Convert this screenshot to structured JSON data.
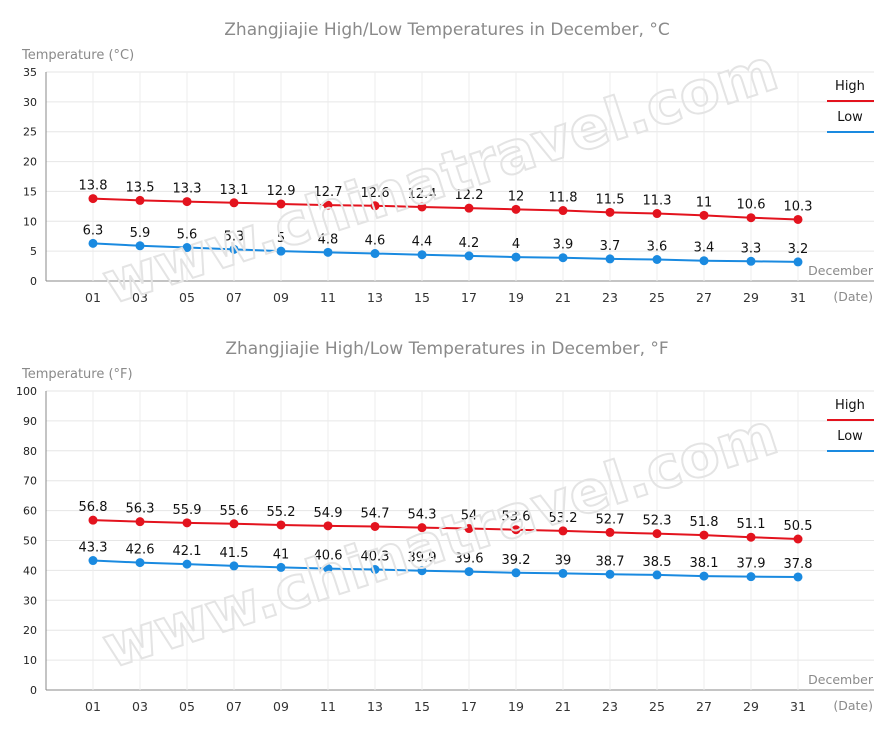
{
  "chart_data": [
    {
      "type": "line",
      "title": "Zhangjiajie High/Low Temperatures in December, °C",
      "ylabel": "Temperature (°C)",
      "xlabel": "December",
      "xlabel_sub": "(Date)",
      "categories": [
        "01",
        "03",
        "05",
        "07",
        "09",
        "11",
        "13",
        "15",
        "17",
        "19",
        "21",
        "23",
        "25",
        "27",
        "29",
        "31"
      ],
      "ylim": [
        0,
        35
      ],
      "yticks": [
        0,
        5,
        10,
        15,
        20,
        25,
        30,
        35
      ],
      "grid": true,
      "legend": "right",
      "series": [
        {
          "name": "High",
          "color": "#e3131e",
          "values": [
            13.8,
            13.5,
            13.3,
            13.1,
            12.9,
            12.7,
            12.6,
            12.4,
            12.2,
            12,
            11.8,
            11.5,
            11.3,
            11,
            10.6,
            10.3
          ]
        },
        {
          "name": "Low",
          "color": "#1a8ae0",
          "values": [
            6.3,
            5.9,
            5.6,
            5.3,
            5,
            4.8,
            4.6,
            4.4,
            4.2,
            4,
            3.9,
            3.7,
            3.6,
            3.4,
            3.3,
            3.2
          ]
        }
      ]
    },
    {
      "type": "line",
      "title": "Zhangjiajie High/Low Temperatures in December, °F",
      "ylabel": "Temperature (°F)",
      "xlabel": "December",
      "xlabel_sub": "(Date)",
      "categories": [
        "01",
        "03",
        "05",
        "07",
        "09",
        "11",
        "13",
        "15",
        "17",
        "19",
        "21",
        "23",
        "25",
        "27",
        "29",
        "31"
      ],
      "ylim": [
        0,
        100
      ],
      "yticks": [
        0,
        10,
        20,
        30,
        40,
        50,
        60,
        70,
        80,
        90,
        100
      ],
      "grid": true,
      "legend": "right",
      "series": [
        {
          "name": "High",
          "color": "#e3131e",
          "values": [
            56.8,
            56.3,
            55.9,
            55.6,
            55.2,
            54.9,
            54.7,
            54.3,
            54,
            53.6,
            53.2,
            52.7,
            52.3,
            51.8,
            51.1,
            50.5
          ]
        },
        {
          "name": "Low",
          "color": "#1a8ae0",
          "values": [
            43.3,
            42.6,
            42.1,
            41.5,
            41,
            40.6,
            40.3,
            39.9,
            39.6,
            39.2,
            39,
            38.7,
            38.5,
            38.1,
            37.9,
            37.8
          ]
        }
      ]
    }
  ],
  "watermark": "www.chinatravel.com"
}
